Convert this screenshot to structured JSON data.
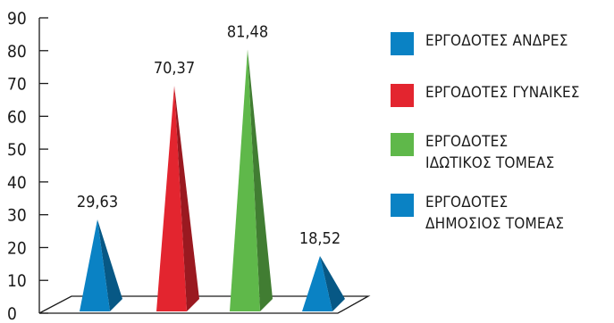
{
  "chart_data": {
    "type": "bar",
    "style": "3d-pyramid",
    "title": "",
    "xlabel": "",
    "ylabel": "",
    "ylim": [
      0,
      90
    ],
    "yticks": [
      "0",
      "10",
      "20",
      "30",
      "40",
      "50",
      "60",
      "70",
      "80",
      "90"
    ],
    "grid": false,
    "legend_position": "right",
    "series": [
      {
        "name": "ΕΡΓΟΔΟΤΕΣ ΑΝΔΡΕΣ",
        "value": 29.63,
        "label": "29,63",
        "color": "#0a82c4"
      },
      {
        "name": "ΕΡΓΟΔΟΤΕΣ ΓΥΝΑΙΚΕΣ",
        "value": 70.37,
        "label": "70,37",
        "color": "#e3252f"
      },
      {
        "name": "ΕΡΓΟΔΟΤΕΣ\nΙΔΩΤΙΚΟΣ ΤΟΜΕΑΣ",
        "value": 81.48,
        "label": "81,48",
        "color": "#5fb84a"
      },
      {
        "name": "ΕΡΓΟΔΟΤΕΣ\nΔΗΜΟΣΙΟΣ ΤΟΜΕΑΣ",
        "value": 18.52,
        "label": "18,52",
        "color": "#0a82c4"
      }
    ]
  }
}
